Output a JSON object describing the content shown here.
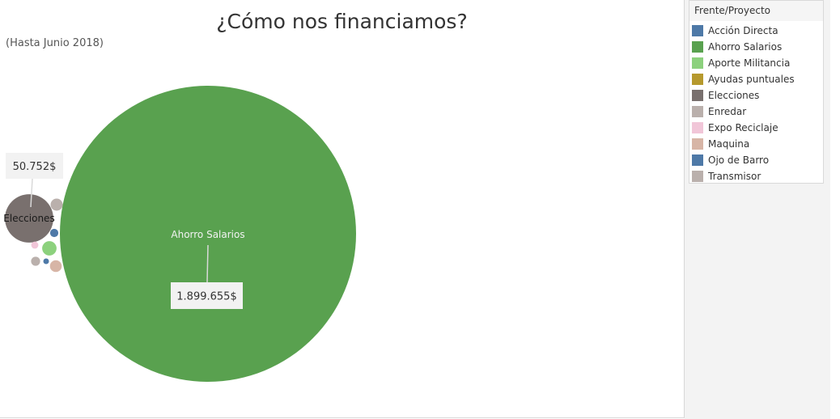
{
  "title": "¿Cómo nos financiamos?",
  "subtitle": "(Hasta Junio 2018)",
  "legend": {
    "title": "Frente/Proyecto",
    "items": [
      {
        "label": "Acción Directa",
        "color": "#4e79a7"
      },
      {
        "label": "Ahorro Salarios",
        "color": "#59a14f"
      },
      {
        "label": "Aporte Militancia",
        "color": "#8cd17d"
      },
      {
        "label": "Ayudas puntuales",
        "color": "#b6992d"
      },
      {
        "label": "Elecciones",
        "color": "#79706e"
      },
      {
        "label": "Enredar",
        "color": "#bab0ac"
      },
      {
        "label": "Expo Reciclaje",
        "color": "#f1c6d8"
      },
      {
        "label": "Maquina",
        "color": "#d7b5a6"
      },
      {
        "label": "Ojo de Barro",
        "color": "#4e79a7"
      },
      {
        "label": "Transmisor",
        "color": "#bab0ac"
      }
    ]
  },
  "chart_data": {
    "type": "bubble",
    "title": "¿Cómo nos financiamos?",
    "subtitle": "(Hasta Junio 2018)",
    "color_legend": "Frente/Proyecto",
    "series": [
      {
        "name": "Ahorro Salarios",
        "value": 1899655,
        "label": "1.899.655$",
        "color": "#59a14f"
      },
      {
        "name": "Elecciones",
        "value": 50752,
        "label": "50.752$",
        "color": "#79706e"
      },
      {
        "name": "Aporte Militancia",
        "value": 4500,
        "color": "#8cd17d"
      },
      {
        "name": "Transmisor",
        "value": 3200,
        "color": "#bab0ac"
      },
      {
        "name": "Maquina",
        "value": 3000,
        "color": "#d7b5a6"
      },
      {
        "name": "Enredar",
        "value": 1800,
        "color": "#bab0ac"
      },
      {
        "name": "Acción Directa",
        "value": 1500,
        "color": "#4e79a7"
      },
      {
        "name": "Expo Reciclaje",
        "value": 1100,
        "color": "#f1c6d8"
      },
      {
        "name": "Ojo de Barro",
        "value": 400,
        "color": "#4e79a7"
      }
    ]
  }
}
